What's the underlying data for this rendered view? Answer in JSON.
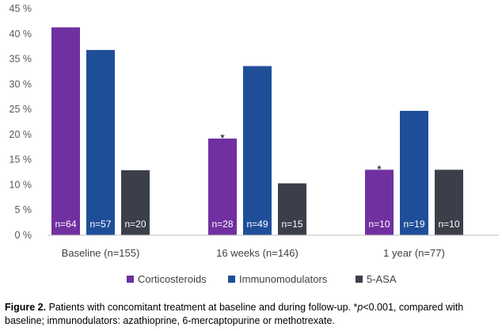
{
  "chart_data": {
    "type": "bar",
    "categories": [
      "Baseline (n=155)",
      "16 weeks (n=146)",
      "1 year (n=77)"
    ],
    "series": [
      {
        "name": "Corticosteroids",
        "color": "#7030a0",
        "values": [
          41.3,
          19.2,
          13.0
        ],
        "labels": [
          "n=64",
          "n=28",
          "n=10"
        ]
      },
      {
        "name": "Immunomodulators",
        "color": "#1f4e99",
        "values": [
          36.8,
          33.6,
          24.7
        ],
        "labels": [
          "n=57",
          "n=49",
          "n=19"
        ]
      },
      {
        "name": "5-ASA",
        "color": "#3b3f4a",
        "values": [
          12.9,
          10.3,
          13.0
        ],
        "labels": [
          "n=20",
          "n=15",
          "n=10"
        ]
      }
    ],
    "annotations": [
      {
        "series": 0,
        "category": 1,
        "text": "*"
      },
      {
        "series": 0,
        "category": 2,
        "text": "*"
      }
    ],
    "yticks": [
      "0 %",
      "5 %",
      "10 %",
      "15 %",
      "20 %",
      "25 %",
      "30 %",
      "35 %",
      "40 %",
      "45 %"
    ],
    "ylim": [
      0,
      45
    ],
    "grid": false,
    "legend": "bottom"
  },
  "caption": {
    "figure_label": "Figure 2.",
    "text_before": " Patients with concomitant treatment at baseline and during follow-up. *",
    "italic": "p",
    "text_after": "<0.001, compared with baseline; immunodulators: azathioprine, 6-mercaptopurine or methotrexate."
  }
}
